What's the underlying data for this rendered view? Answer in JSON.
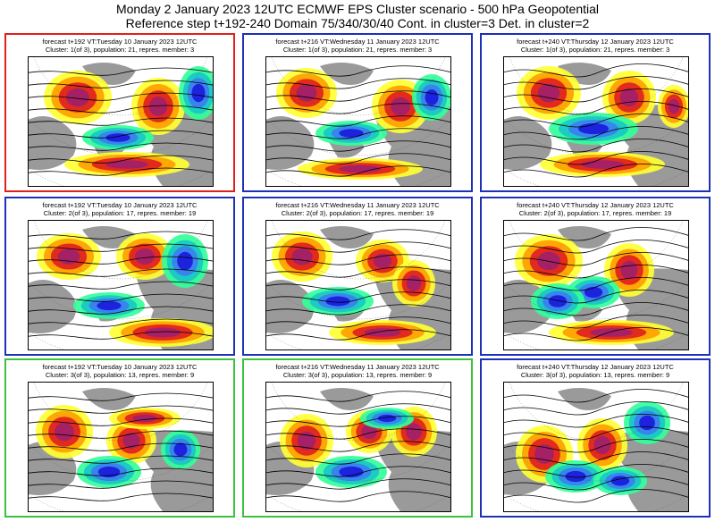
{
  "header": {
    "title_line1": "Monday 2 January 2023 12UTC ECMWF EPS Cluster scenario - 500 hPa Geopotential",
    "title_line2": "Reference step t+192-240 Domain 75/340/30/40 Cont. in cluster=3 Det. in cluster=2"
  },
  "colors": {
    "cluster1_border": "#e0201c",
    "cluster2_border": "#1e2fb8",
    "cluster3_border": "#3cc23c",
    "deterministic_border": "#1e2fb8",
    "land": "#9a9a9a",
    "positive_anomaly": [
      "#ffff33",
      "#ff9f00",
      "#e02020",
      "#a0206a"
    ],
    "negative_anomaly": [
      "#33ff99",
      "#19c7c7",
      "#3a7ff0",
      "#1a1adb"
    ]
  },
  "panels": [
    {
      "line1": "forecast t+192 VT:Tuesday 10 January 2023 12UTC",
      "line2": "Cluster: 1(of 3), population: 21, repres. member: 3",
      "border": "#e0201c"
    },
    {
      "line1": "forecast t+216 VT:Wednesday 11 January 2023 12UTC",
      "line2": "Cluster: 1(of 3), population: 21, repres. member: 3",
      "border": "#1e2fb8"
    },
    {
      "line1": "forecast t+240 VT:Thursday 12 January 2023 12UTC",
      "line2": "Cluster: 1(of 3), population: 21, repres. member: 3",
      "border": "#1e2fb8"
    },
    {
      "line1": "forecast t+192 VT:Tuesday 10 January 2023 12UTC",
      "line2": "Cluster: 2(of 3), population: 17, repres. member: 19",
      "border": "#1e2fb8"
    },
    {
      "line1": "forecast t+216 VT:Wednesday 11 January 2023 12UTC",
      "line2": "Cluster: 2(of 3), population: 17, repres. member: 19",
      "border": "#1e2fb8"
    },
    {
      "line1": "forecast t+240 VT:Thursday 12 January 2023 12UTC",
      "line2": "Cluster: 2(of 3), population: 17, repres. member: 19",
      "border": "#1e2fb8"
    },
    {
      "line1": "forecast t+192 VT:Tuesday 10 January 2023 12UTC",
      "line2": "Cluster: 3(of 3), population: 13, repres. member: 9",
      "border": "#3cc23c"
    },
    {
      "line1": "forecast t+216 VT:Wednesday 11 January 2023 12UTC",
      "line2": "Cluster: 3(of 3), population: 13, repres. member: 9",
      "border": "#3cc23c"
    },
    {
      "line1": "forecast t+240 VT:Thursday 12 January 2023 12UTC",
      "line2": "Cluster: 3(of 3), population: 13, repres. member: 9",
      "border": "#1e2fb8"
    }
  ]
}
